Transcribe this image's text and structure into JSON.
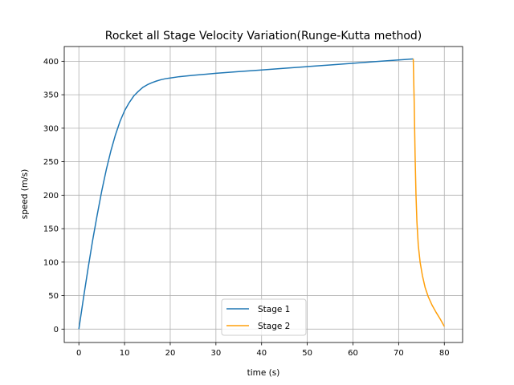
{
  "chart_data": {
    "type": "line",
    "title": "Rocket all Stage Velocity Variation(Runge-Kutta method)",
    "xlabel": "time (s)",
    "ylabel": "speed (m/s)",
    "xlim": [
      -3.2,
      84
    ],
    "ylim": [
      -20,
      422
    ],
    "xticks": [
      0,
      10,
      20,
      30,
      40,
      50,
      60,
      70,
      80
    ],
    "yticks": [
      0,
      50,
      100,
      150,
      200,
      250,
      300,
      350,
      400
    ],
    "grid": true,
    "legend": {
      "position": "lower-center"
    },
    "series": [
      {
        "name": "Stage 1",
        "color": "#1f77b4",
        "points": [
          [
            0,
            0
          ],
          [
            1,
            46
          ],
          [
            2,
            90
          ],
          [
            3,
            132
          ],
          [
            4,
            170
          ],
          [
            5,
            206
          ],
          [
            6,
            238
          ],
          [
            7,
            266
          ],
          [
            8,
            290
          ],
          [
            9,
            310
          ],
          [
            10,
            326
          ],
          [
            11,
            338
          ],
          [
            12,
            348
          ],
          [
            13,
            355
          ],
          [
            14,
            361
          ],
          [
            15,
            365
          ],
          [
            16,
            368
          ],
          [
            17,
            370.5
          ],
          [
            18,
            372.5
          ],
          [
            19,
            374
          ],
          [
            20,
            375
          ],
          [
            22,
            377
          ],
          [
            25,
            379
          ],
          [
            30,
            382
          ],
          [
            35,
            384.5
          ],
          [
            40,
            387
          ],
          [
            45,
            389.5
          ],
          [
            50,
            392
          ],
          [
            55,
            394.5
          ],
          [
            60,
            397
          ],
          [
            65,
            399.5
          ],
          [
            70,
            402
          ],
          [
            73.2,
            403.5
          ]
        ]
      },
      {
        "name": "Stage 2",
        "color": "#ff9f0a",
        "points": [
          [
            73.2,
            403.5
          ],
          [
            73.4,
            340
          ],
          [
            73.6,
            260
          ],
          [
            73.8,
            200
          ],
          [
            74.0,
            160
          ],
          [
            74.3,
            125
          ],
          [
            74.7,
            100
          ],
          [
            75.2,
            80
          ],
          [
            75.8,
            62
          ],
          [
            76.5,
            48
          ],
          [
            77.3,
            36
          ],
          [
            78.2,
            25
          ],
          [
            79.1,
            15
          ],
          [
            80.0,
            4
          ]
        ]
      }
    ]
  }
}
